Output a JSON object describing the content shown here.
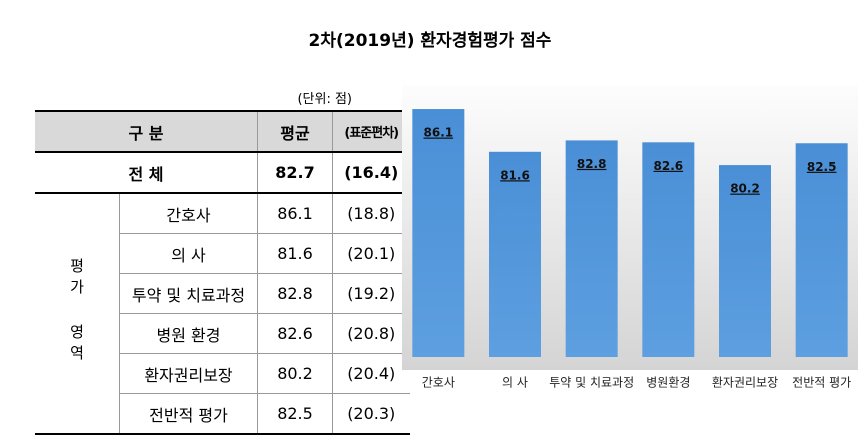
{
  "title": "2차(2019년) 환자경험평가 점수",
  "table": {
    "unit_note": "(단위: 점)",
    "header": [
      "구 분",
      "평균",
      "(표준편차)"
    ],
    "total": {
      "label": "전 체",
      "mean": 82.7,
      "sd": "(16.4)"
    },
    "group_label": "평가 영역",
    "rows": [
      {
        "label": "간호사",
        "mean": 86.1,
        "sd": "(18.8)"
      },
      {
        "label": "의 사",
        "mean": 81.6,
        "sd": "(20.1)"
      },
      {
        "label": "투약 및 치료과정",
        "mean": 82.8,
        "sd": "(19.2)"
      },
      {
        "label": "병원 환경",
        "mean": 82.6,
        "sd": "(20.8)"
      },
      {
        "label": "환자권리보장",
        "mean": 80.2,
        "sd": "(20.4)"
      },
      {
        "label": "전반적 평가",
        "mean": 82.5,
        "sd": "(20.3)"
      }
    ]
  },
  "chart_data": {
    "type": "bar",
    "categories": [
      "간호사",
      "의 사",
      "투약 및 치료과정",
      "병원환경",
      "환자권리보장",
      "전반적 평가"
    ],
    "values": [
      86.1,
      81.6,
      82.8,
      82.6,
      80.2,
      82.5
    ],
    "color": "#4a8fd6",
    "ylim": [
      60,
      88
    ]
  }
}
